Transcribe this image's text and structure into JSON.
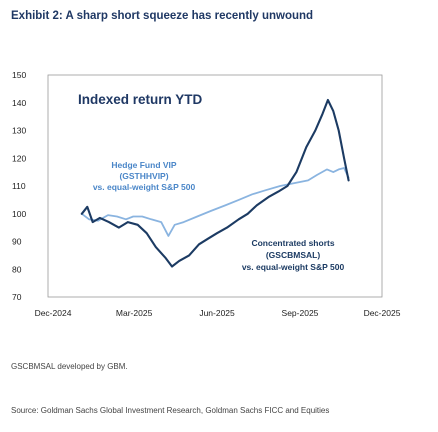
{
  "header": {
    "title": "Exhibit 2: A sharp short squeeze has recently unwound"
  },
  "chart_data": {
    "type": "line",
    "title": "Indexed return YTD",
    "xlabel": "",
    "ylabel": "",
    "ylim": [
      70,
      150
    ],
    "yticks": [
      70,
      80,
      90,
      100,
      110,
      120,
      130,
      140,
      150
    ],
    "xticks": [
      "Dec-2024",
      "Mar-2025",
      "Jun-2025",
      "Sep-2025",
      "Dec-2025"
    ],
    "xtick_dates": [
      "2024-12-01",
      "2025-03-01",
      "2025-06-01",
      "2025-09-01",
      "2025-12-01"
    ],
    "grid": false,
    "series": [
      {
        "name": "Hedge Fund VIP (GSTHHVIP) vs. equal-weight S&P 500",
        "color": "#8ab4e0",
        "points": [
          [
            "2025-01-02",
            100
          ],
          [
            "2025-01-10",
            98
          ],
          [
            "2025-01-20",
            97.5
          ],
          [
            "2025-01-31",
            99.5
          ],
          [
            "2025-02-10",
            99
          ],
          [
            "2025-02-20",
            98
          ],
          [
            "2025-02-28",
            99
          ],
          [
            "2025-03-10",
            99
          ],
          [
            "2025-03-20",
            98
          ],
          [
            "2025-03-31",
            97
          ],
          [
            "2025-04-08",
            92
          ],
          [
            "2025-04-15",
            96
          ],
          [
            "2025-04-25",
            97
          ],
          [
            "2025-05-10",
            99
          ],
          [
            "2025-05-25",
            101
          ],
          [
            "2025-06-10",
            103
          ],
          [
            "2025-06-25",
            105
          ],
          [
            "2025-07-10",
            107
          ],
          [
            "2025-07-25",
            108.5
          ],
          [
            "2025-08-10",
            110
          ],
          [
            "2025-08-25",
            111
          ],
          [
            "2025-09-10",
            112
          ],
          [
            "2025-09-20",
            114
          ],
          [
            "2025-10-01",
            116
          ],
          [
            "2025-10-08",
            115
          ],
          [
            "2025-10-14",
            116
          ],
          [
            "2025-10-20",
            116.5
          ],
          [
            "2025-10-25",
            113
          ]
        ]
      },
      {
        "name": "Concentrated shorts (GSCBMSAL) vs. equal-weight S&P 500",
        "color": "#1c3b63",
        "points": [
          [
            "2025-01-02",
            100
          ],
          [
            "2025-01-08",
            102.5
          ],
          [
            "2025-01-14",
            97
          ],
          [
            "2025-01-22",
            98.5
          ],
          [
            "2025-02-01",
            97
          ],
          [
            "2025-02-12",
            95
          ],
          [
            "2025-02-22",
            97
          ],
          [
            "2025-03-05",
            96
          ],
          [
            "2025-03-15",
            93
          ],
          [
            "2025-03-25",
            88
          ],
          [
            "2025-04-05",
            84
          ],
          [
            "2025-04-12",
            81
          ],
          [
            "2025-04-20",
            83
          ],
          [
            "2025-05-01",
            85
          ],
          [
            "2025-05-12",
            89
          ],
          [
            "2025-05-22",
            91
          ],
          [
            "2025-06-01",
            93
          ],
          [
            "2025-06-12",
            95
          ],
          [
            "2025-06-25",
            98
          ],
          [
            "2025-07-05",
            100
          ],
          [
            "2025-07-15",
            103
          ],
          [
            "2025-07-28",
            106
          ],
          [
            "2025-08-08",
            108
          ],
          [
            "2025-08-18",
            110
          ],
          [
            "2025-08-28",
            115
          ],
          [
            "2025-09-08",
            124
          ],
          [
            "2025-09-18",
            130
          ],
          [
            "2025-09-26",
            136
          ],
          [
            "2025-10-02",
            141
          ],
          [
            "2025-10-08",
            137
          ],
          [
            "2025-10-14",
            130
          ],
          [
            "2025-10-20",
            120
          ],
          [
            "2025-10-25",
            112
          ]
        ]
      }
    ],
    "annotations": [
      {
        "lines": [
          "Hedge Fund VIP",
          "(GSTHHVIP)",
          "vs. equal-weight S&P 500"
        ],
        "color": "#4a86c8"
      },
      {
        "lines": [
          "Concentrated shorts",
          "(GSCBMSAL)",
          "vs. equal-weight S&P 500"
        ],
        "color": "#1c3b63"
      }
    ]
  },
  "note": "GSCBMSAL developed by GBM.",
  "source": "Source: Goldman Sachs Global Investment Research, Goldman Sachs FICC and Equities"
}
